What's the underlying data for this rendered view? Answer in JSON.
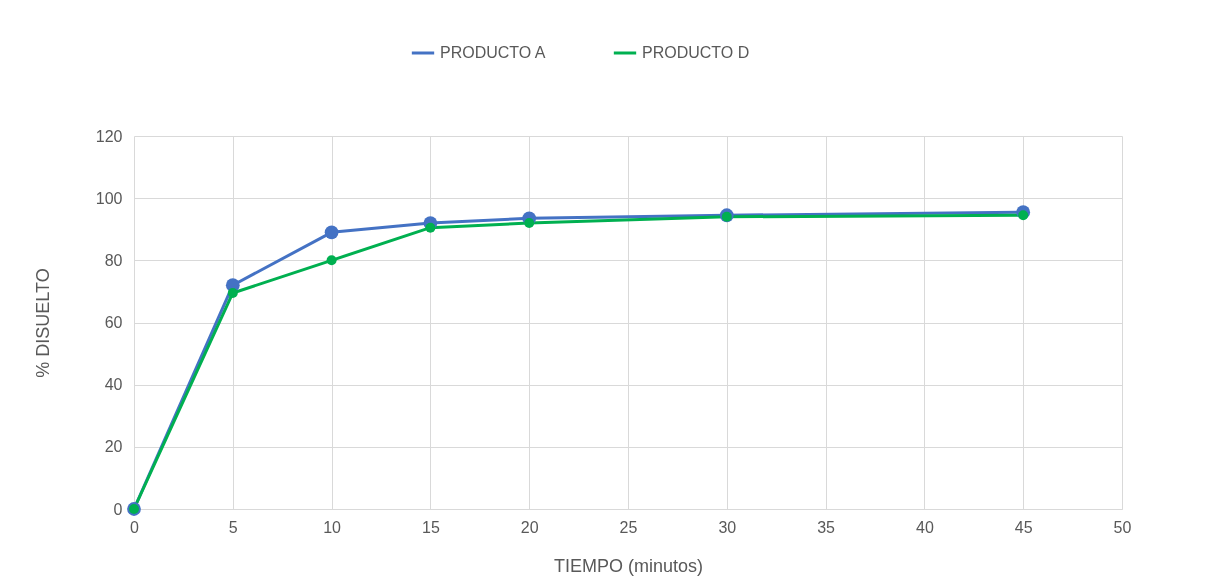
{
  "chart_data": {
    "type": "line",
    "xlabel": "TIEMPO (minutos)",
    "ylabel": "% DISUELTO",
    "x": [
      0,
      5,
      10,
      15,
      20,
      30,
      45
    ],
    "series": [
      {
        "name": "PRODUCTO A",
        "color": "#4472c4",
        "values": [
          0,
          72,
          89,
          92,
          93.5,
          94.5,
          95.5
        ]
      },
      {
        "name": "PRODUCTO D",
        "color": "#00b050",
        "values": [
          0,
          69.5,
          80,
          90.5,
          92,
          94,
          94.5
        ]
      }
    ],
    "xlim": [
      0,
      50
    ],
    "xticks": [
      0,
      5,
      10,
      15,
      20,
      25,
      30,
      35,
      40,
      45,
      50
    ],
    "ylim": [
      0,
      120
    ],
    "yticks": [
      0,
      20,
      40,
      60,
      80,
      100,
      120
    ],
    "grid": true,
    "legend": "top",
    "marker": "circle",
    "line_style": "solid"
  }
}
